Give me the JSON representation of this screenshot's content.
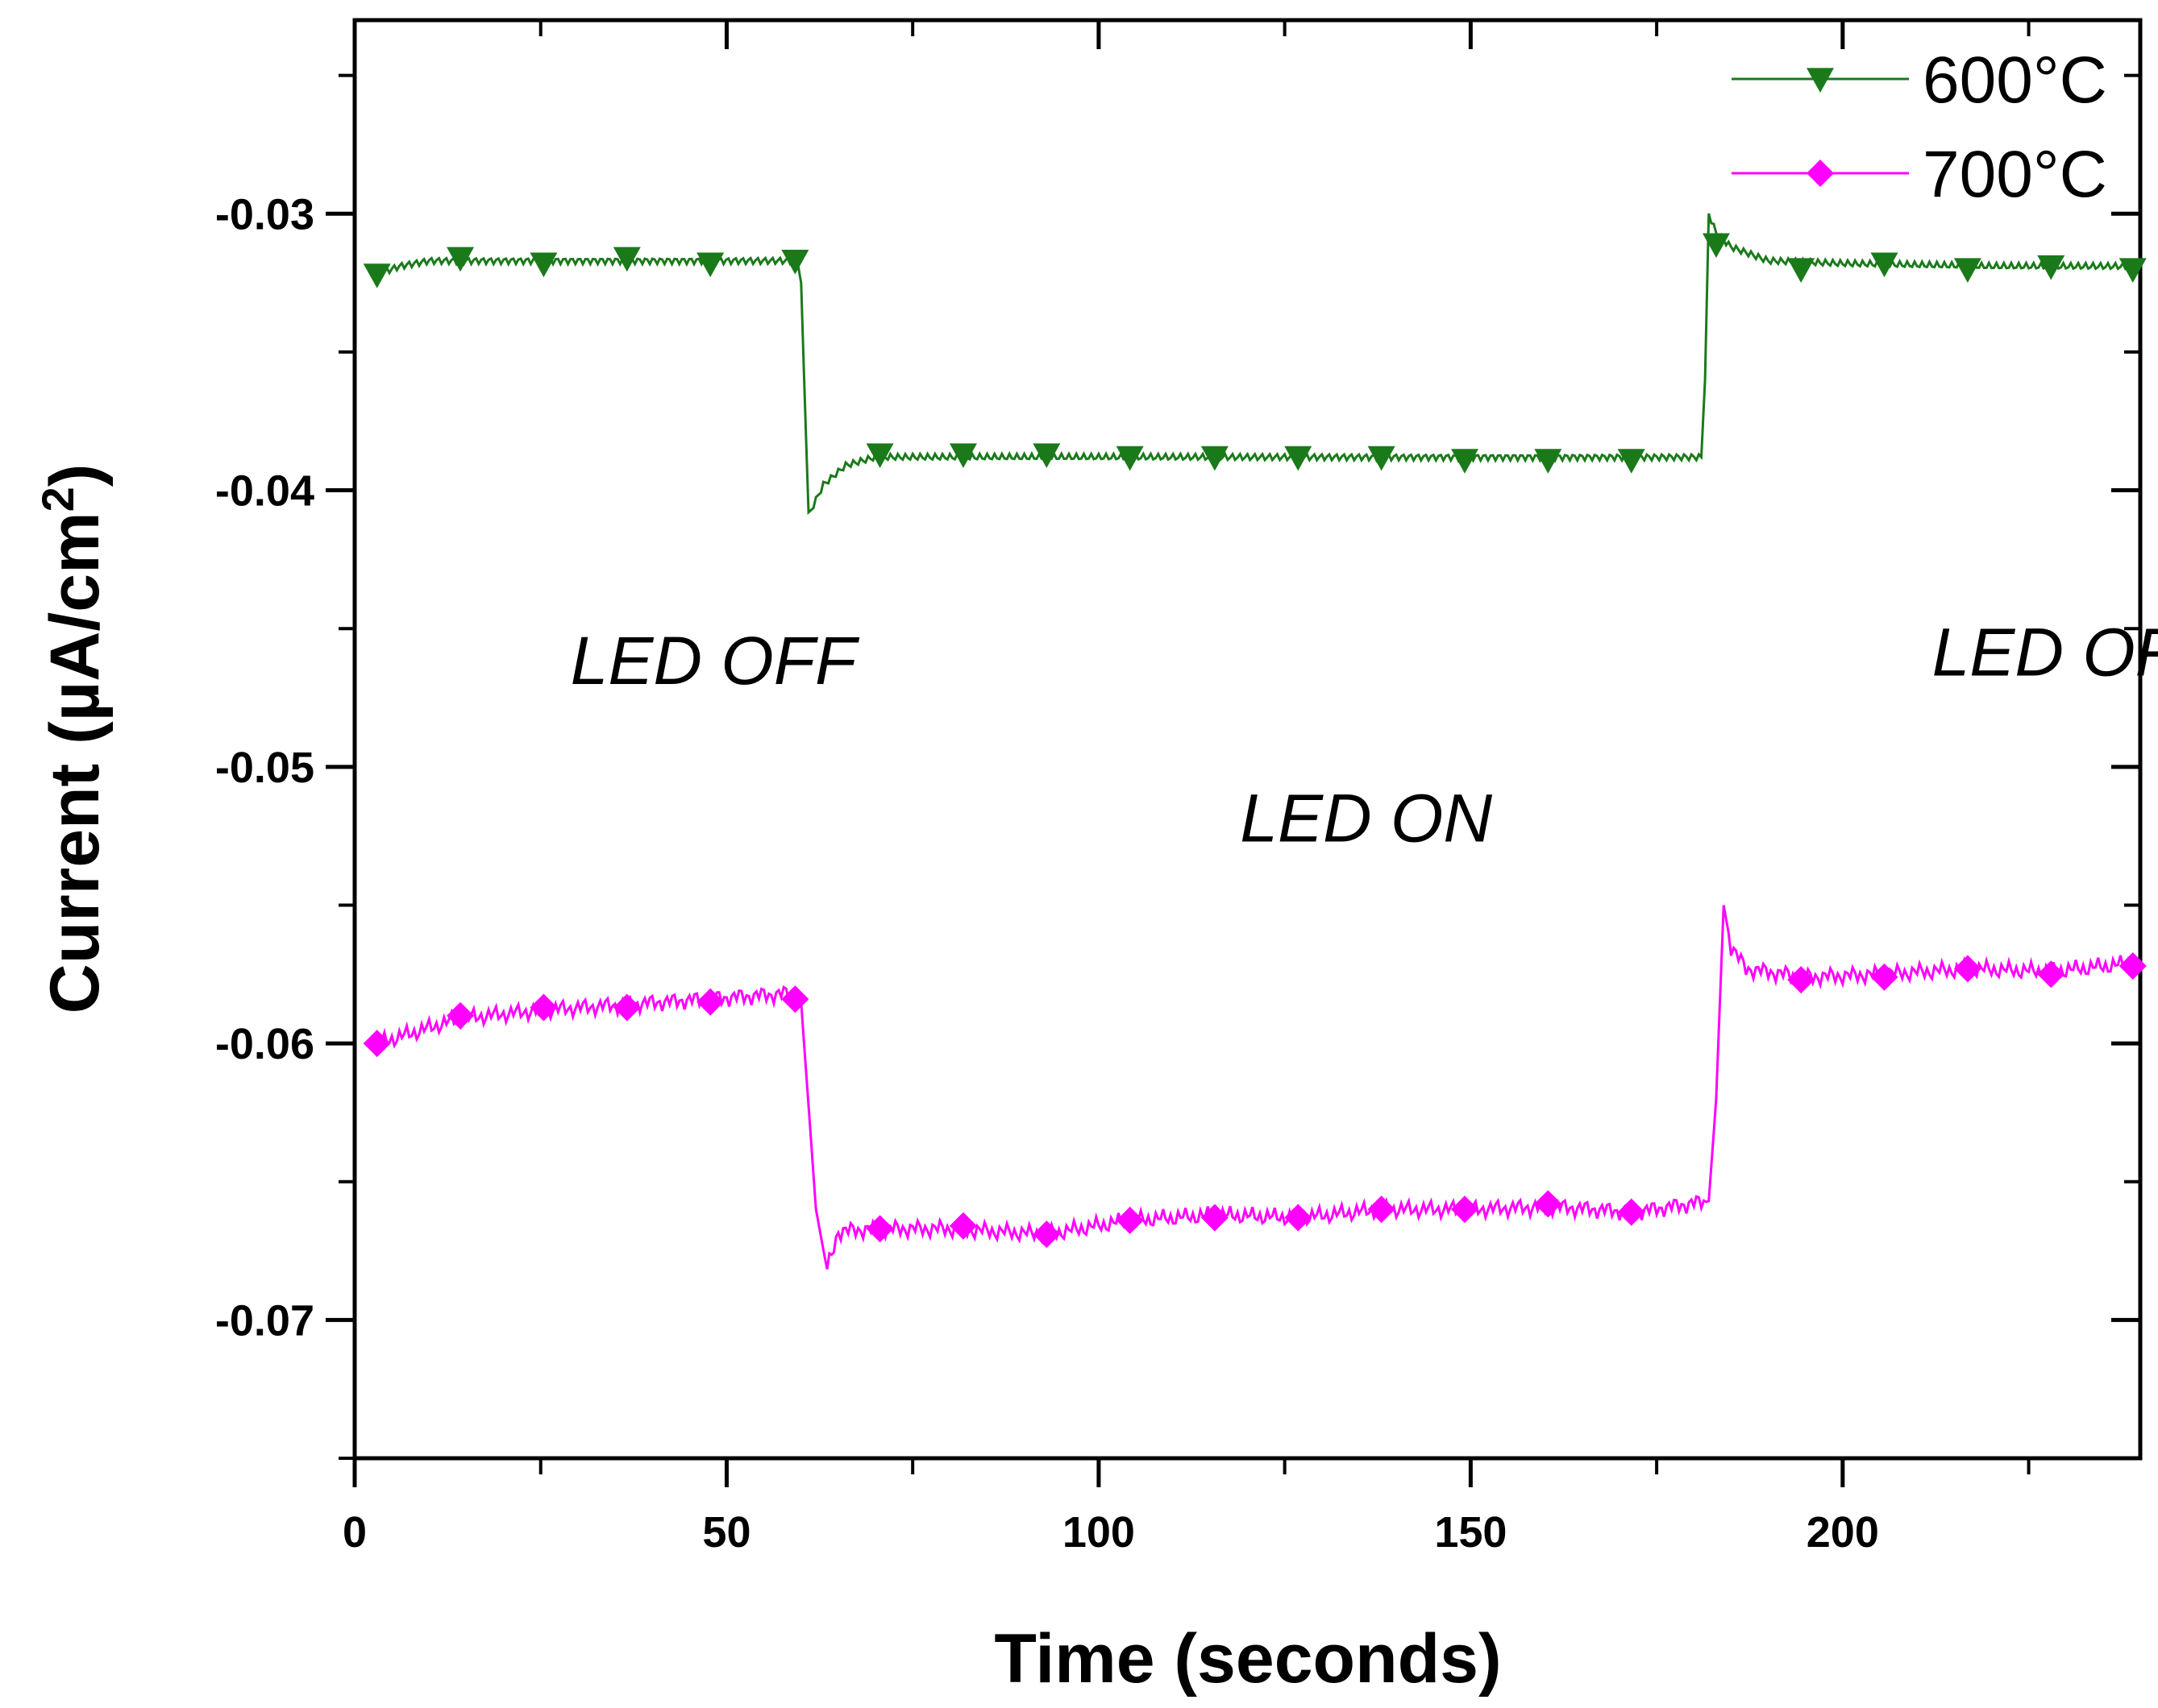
{
  "chart_data": {
    "type": "line",
    "xlabel": "Time (seconds)",
    "ylabel_main": "Current (µA/cm",
    "ylabel_sup": "2",
    "ylabel_end": ")",
    "xlim": [
      0,
      240
    ],
    "ylim": [
      -0.075,
      -0.023
    ],
    "x_ticks": [
      0,
      50,
      100,
      150,
      200
    ],
    "x_tick_labels": [
      "0",
      "50",
      "100",
      "150",
      "200"
    ],
    "y_ticks": [
      -0.03,
      -0.04,
      -0.05,
      -0.06,
      -0.07
    ],
    "y_tick_labels": [
      "-0.03",
      "-0.04",
      "-0.05",
      "-0.06",
      "-0.07"
    ],
    "grid": false,
    "legend_position": "top-right",
    "annotations": [
      {
        "text": "LED OFF",
        "x": 29,
        "y": -0.047
      },
      {
        "text": "LED ON",
        "x": 119,
        "y": -0.0527
      },
      {
        "text": "LED OFF",
        "x": 212,
        "y": -0.0467
      }
    ],
    "series": [
      {
        "name": "600°C",
        "color": "#1a7a1a",
        "marker": "triangle-down",
        "line": [
          [
            3,
            -0.0322
          ],
          [
            6,
            -0.0319
          ],
          [
            10,
            -0.0317
          ],
          [
            20,
            -0.0317
          ],
          [
            40,
            -0.0317
          ],
          [
            59.5,
            -0.0317
          ],
          [
            60,
            -0.0325
          ],
          [
            61,
            -0.0409
          ],
          [
            63,
            -0.0398
          ],
          [
            66,
            -0.0391
          ],
          [
            70,
            -0.0388
          ],
          [
            100,
            -0.0388
          ],
          [
            150,
            -0.0388
          ],
          [
            181,
            -0.0388
          ],
          [
            181.5,
            -0.036
          ],
          [
            182,
            -0.03
          ],
          [
            183,
            -0.0307
          ],
          [
            185,
            -0.0312
          ],
          [
            190,
            -0.0317
          ],
          [
            200,
            -0.0318
          ],
          [
            220,
            -0.0319
          ],
          [
            239,
            -0.0319
          ]
        ],
        "markers": [
          [
            3,
            -0.0322
          ],
          [
            14.2,
            -0.0316
          ],
          [
            25.4,
            -0.0318
          ],
          [
            36.6,
            -0.0316
          ],
          [
            47.8,
            -0.0318
          ],
          [
            59.2,
            -0.0317
          ],
          [
            70.6,
            -0.0387
          ],
          [
            81.8,
            -0.0387
          ],
          [
            93,
            -0.0387
          ],
          [
            104.2,
            -0.0388
          ],
          [
            115.6,
            -0.0388
          ],
          [
            126.8,
            -0.0388
          ],
          [
            138,
            -0.0388
          ],
          [
            149.2,
            -0.0389
          ],
          [
            160.4,
            -0.0389
          ],
          [
            171.6,
            -0.0389
          ],
          [
            183,
            -0.0311
          ],
          [
            194.4,
            -0.032
          ],
          [
            205.6,
            -0.0318
          ],
          [
            216.8,
            -0.032
          ],
          [
            228,
            -0.0319
          ],
          [
            239,
            -0.032
          ]
        ]
      },
      {
        "name": "700°C",
        "color": "#ff00ff",
        "marker": "diamond",
        "line": [
          [
            3,
            -0.06
          ],
          [
            8,
            -0.0596
          ],
          [
            14,
            -0.0591
          ],
          [
            25,
            -0.0588
          ],
          [
            36,
            -0.0586
          ],
          [
            47,
            -0.0584
          ],
          [
            58,
            -0.0582
          ],
          [
            60,
            -0.0585
          ],
          [
            62,
            -0.066
          ],
          [
            63.5,
            -0.0682
          ],
          [
            65,
            -0.0668
          ],
          [
            70,
            -0.0667
          ],
          [
            80,
            -0.0667
          ],
          [
            93,
            -0.0669
          ],
          [
            104,
            -0.0664
          ],
          [
            116,
            -0.0662
          ],
          [
            127,
            -0.0663
          ],
          [
            138,
            -0.066
          ],
          [
            150,
            -0.066
          ],
          [
            161,
            -0.0659
          ],
          [
            172,
            -0.0661
          ],
          [
            182,
            -0.0657
          ],
          [
            183,
            -0.062
          ],
          [
            184,
            -0.055
          ],
          [
            185,
            -0.0565
          ],
          [
            187,
            -0.0573
          ],
          [
            195,
            -0.0576
          ],
          [
            205,
            -0.0575
          ],
          [
            217,
            -0.0573
          ],
          [
            228,
            -0.0574
          ],
          [
            239,
            -0.0571
          ]
        ],
        "markers": [
          [
            3,
            -0.06
          ],
          [
            14.2,
            -0.059
          ],
          [
            25.4,
            -0.0587
          ],
          [
            36.6,
            -0.0587
          ],
          [
            47.8,
            -0.0585
          ],
          [
            59.2,
            -0.0584
          ],
          [
            70.6,
            -0.0667
          ],
          [
            81.8,
            -0.0666
          ],
          [
            93,
            -0.0669
          ],
          [
            104.2,
            -0.0664
          ],
          [
            115.6,
            -0.0663
          ],
          [
            126.8,
            -0.0663
          ],
          [
            138,
            -0.066
          ],
          [
            149.2,
            -0.066
          ],
          [
            160.4,
            -0.0658
          ],
          [
            171.6,
            -0.0661
          ],
          [
            194.4,
            -0.0577
          ],
          [
            205.6,
            -0.0576
          ],
          [
            216.8,
            -0.0573
          ],
          [
            228,
            -0.0575
          ],
          [
            239,
            -0.0572
          ]
        ]
      }
    ]
  }
}
